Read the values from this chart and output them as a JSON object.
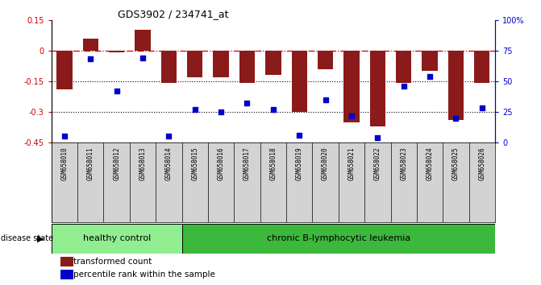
{
  "title": "GDS3902 / 234741_at",
  "samples": [
    "GSM658010",
    "GSM658011",
    "GSM658012",
    "GSM658013",
    "GSM658014",
    "GSM658015",
    "GSM658016",
    "GSM658017",
    "GSM658018",
    "GSM658019",
    "GSM658020",
    "GSM658021",
    "GSM658022",
    "GSM658023",
    "GSM658024",
    "GSM658025",
    "GSM658026"
  ],
  "bar_values": [
    -0.19,
    0.06,
    -0.01,
    0.1,
    -0.16,
    -0.13,
    -0.13,
    -0.16,
    -0.12,
    -0.3,
    -0.09,
    -0.35,
    -0.37,
    -0.16,
    -0.1,
    -0.34,
    -0.16
  ],
  "percentile_values": [
    5,
    68,
    42,
    69,
    5,
    27,
    25,
    32,
    27,
    6,
    35,
    22,
    4,
    46,
    54,
    20,
    28
  ],
  "ylim_left": [
    -0.45,
    0.15
  ],
  "ylim_right": [
    0,
    100
  ],
  "dotted_lines": [
    -0.15,
    -0.3
  ],
  "healthy_count": 5,
  "group1_label": "healthy control",
  "group2_label": "chronic B-lymphocytic leukemia",
  "disease_state_label": "disease state",
  "bar_color": "#8B1A1A",
  "scatter_color": "#0000CC",
  "group1_bg": "#90EE90",
  "group2_bg": "#3CB83C",
  "label_tc": "transformed count",
  "label_pr": "percentile rank within the sample",
  "right_axis_ticks": [
    0,
    25,
    50,
    75,
    100
  ],
  "right_axis_labels": [
    "0",
    "25",
    "50",
    "75",
    "100%"
  ],
  "left_axis_ticks": [
    -0.45,
    -0.3,
    -0.15,
    0,
    0.15
  ],
  "left_axis_labels": [
    "-0.45",
    "-0.3",
    "-0.15",
    "0",
    "0.15"
  ],
  "tick_label_bg": "#D3D3D3"
}
